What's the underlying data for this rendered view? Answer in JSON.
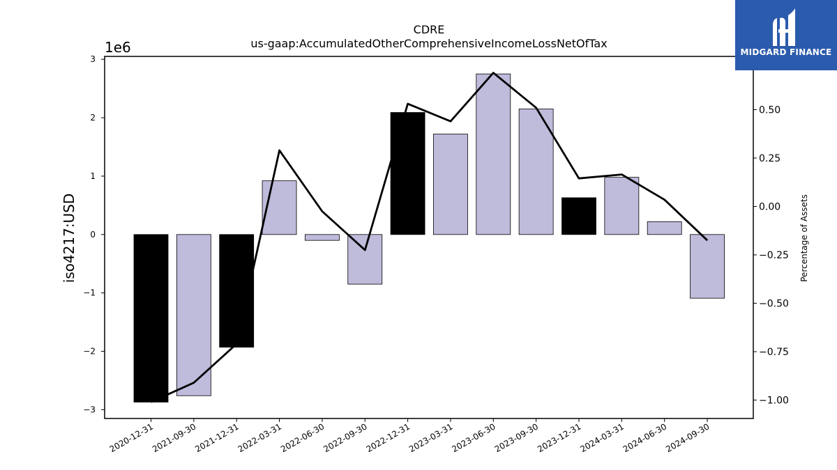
{
  "logo": {
    "text": "MIDGARD FINANCE",
    "icon": "midgard-logo-icon",
    "background": "#2b5bad"
  },
  "chart_data": {
    "type": "bar",
    "title": "CDRE",
    "subtitle": "us-gaap:AccumulatedOtherComprehensiveIncomeLossNetOfTax",
    "ylabel": "iso4217:USD",
    "y_offset_label": "1e6",
    "y2label": "Percentage of Assets",
    "categories": [
      "2020-12-31",
      "2021-09-30",
      "2021-12-31",
      "2022-03-31",
      "2022-06-30",
      "2022-09-30",
      "2022-12-31",
      "2023-03-31",
      "2023-06-30",
      "2023-09-30",
      "2023-12-31",
      "2024-03-31",
      "2024-06-30",
      "2024-09-30"
    ],
    "series": [
      {
        "type": "bar",
        "values": [
          -2870000.0,
          -2760000.0,
          -1930000.0,
          920000.0,
          -100000.0,
          -850000.0,
          2090000.0,
          1720000.0,
          2750000.0,
          2150000.0,
          630000.0,
          980000.0,
          220000.0,
          -1090000.0
        ],
        "highlight": [
          true,
          false,
          true,
          false,
          false,
          false,
          true,
          false,
          false,
          false,
          true,
          false,
          false,
          false
        ]
      },
      {
        "type": "line",
        "axis": "right",
        "values": [
          -1.01,
          -0.91,
          -0.71,
          0.29,
          -0.025,
          -0.225,
          0.53,
          0.44,
          0.69,
          0.51,
          0.145,
          0.165,
          0.035,
          -0.175
        ]
      }
    ],
    "ylim": [
      -3150000.0,
      3050000.0
    ],
    "yticks": [
      -3000000.0,
      -2000000.0,
      -1000000.0,
      0,
      1000000.0,
      2000000.0,
      3000000.0
    ],
    "ytick_labels": [
      "−3",
      "−2",
      "−1",
      "0",
      "1",
      "2",
      "3"
    ],
    "y2lim": [
      -1.095,
      0.775
    ],
    "y2ticks": [
      -1.0,
      -0.75,
      -0.5,
      -0.25,
      0.0,
      0.25,
      0.5
    ],
    "y2tick_labels": [
      "−1.00",
      "−0.75",
      "−0.50",
      "−0.25",
      "0.00",
      "0.25",
      "0.50"
    ],
    "colors": {
      "bar": "#bebbdb",
      "bar_highlight": "#000000",
      "edge": "#000000",
      "line": "#000000"
    },
    "grid": false
  }
}
